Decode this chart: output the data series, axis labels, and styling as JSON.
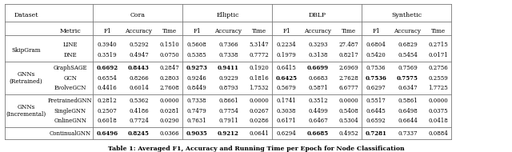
{
  "title": "Table 1: Averaged F1, Accuracy and Running Time per Epoch for Node Classification",
  "datasets": [
    "Cora",
    "Elliptic",
    "DBLP",
    "Synthetic"
  ],
  "metrics": [
    "F1",
    "Accuracy",
    "Time"
  ],
  "row_groups": [
    {
      "group_label": "SkipGram",
      "rows": [
        {
          "method": "LINE",
          "values": [
            0.394,
            0.5292,
            0.151,
            0.5608,
            0.7366,
            5.3147,
            0.2234,
            0.3293,
            27.487,
            0.6804,
            0.6829,
            0.2715
          ],
          "bold": [
            false,
            false,
            false,
            false,
            false,
            false,
            false,
            false,
            false,
            false,
            false,
            false
          ]
        },
        {
          "method": "DNE",
          "values": [
            0.3519,
            0.4947,
            0.075,
            0.5385,
            0.7338,
            0.7772,
            0.1979,
            0.3138,
            0.8217,
            0.542,
            0.5454,
            0.0171
          ],
          "bold": [
            false,
            false,
            false,
            false,
            false,
            false,
            false,
            false,
            false,
            false,
            false,
            false
          ]
        }
      ]
    },
    {
      "group_label": "GNNs\n(Retrained)",
      "rows": [
        {
          "method": "GraphSAGE",
          "values": [
            0.6692,
            0.8443,
            0.2847,
            0.9273,
            0.9411,
            0.192,
            0.6415,
            0.6699,
            2.6969,
            0.7536,
            0.7569,
            0.2756
          ],
          "bold": [
            true,
            true,
            false,
            true,
            true,
            false,
            false,
            true,
            false,
            false,
            false,
            false
          ]
        },
        {
          "method": "GCN",
          "values": [
            0.6554,
            0.8266,
            0.2803,
            0.9246,
            0.9229,
            0.1816,
            0.6425,
            0.6683,
            2.7628,
            0.7536,
            0.7575,
            0.2559
          ],
          "bold": [
            false,
            false,
            false,
            false,
            false,
            false,
            true,
            false,
            false,
            true,
            true,
            false
          ]
        },
        {
          "method": "EvolveGCN",
          "values": [
            0.4416,
            0.6014,
            2.7608,
            0.8449,
            0.8793,
            1.7532,
            0.5679,
            0.5871,
            6.6777,
            0.6297,
            0.6347,
            1.7725
          ],
          "bold": [
            false,
            false,
            false,
            false,
            false,
            false,
            false,
            false,
            false,
            false,
            false,
            false
          ]
        }
      ]
    },
    {
      "group_label": "GNNs\n(Incremental)",
      "rows": [
        {
          "method": "PretrainedGNN",
          "values": [
            0.2812,
            0.5362,
            0.0,
            0.7338,
            0.8661,
            0.0,
            0.1741,
            0.3512,
            0.0,
            0.5517,
            0.5861,
            0.0
          ],
          "bold": [
            false,
            false,
            false,
            false,
            false,
            false,
            false,
            false,
            false,
            false,
            false,
            false
          ]
        },
        {
          "method": "SingleGNN",
          "values": [
            0.2507,
            0.4186,
            0.0281,
            0.7479,
            0.7754,
            0.0267,
            0.3038,
            0.4499,
            0.5408,
            0.6445,
            0.6498,
            0.0375
          ],
          "bold": [
            false,
            false,
            false,
            false,
            false,
            false,
            false,
            false,
            false,
            false,
            false,
            false
          ]
        },
        {
          "method": "OnlineGNN",
          "values": [
            0.6018,
            0.7724,
            0.029,
            0.7631,
            0.7911,
            0.0286,
            0.6171,
            0.6467,
            0.5304,
            0.6592,
            0.6644,
            0.0418
          ],
          "bold": [
            false,
            false,
            false,
            false,
            false,
            false,
            false,
            false,
            false,
            false,
            false,
            false
          ]
        }
      ]
    },
    {
      "group_label": "",
      "rows": [
        {
          "method": "ContinualGNN",
          "values": [
            0.6496,
            0.8245,
            0.0366,
            0.9035,
            0.9212,
            0.0641,
            0.6294,
            0.6685,
            0.4952,
            0.7281,
            0.7337,
            0.0884
          ],
          "bold": [
            true,
            true,
            false,
            true,
            true,
            false,
            false,
            true,
            false,
            true,
            false,
            false
          ]
        }
      ]
    }
  ]
}
